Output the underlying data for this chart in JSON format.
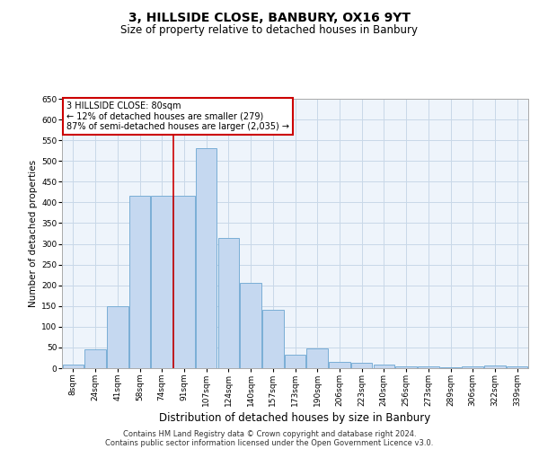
{
  "title1": "3, HILLSIDE CLOSE, BANBURY, OX16 9YT",
  "title2": "Size of property relative to detached houses in Banbury",
  "xlabel": "Distribution of detached houses by size in Banbury",
  "ylabel": "Number of detached properties",
  "footer1": "Contains HM Land Registry data © Crown copyright and database right 2024.",
  "footer2": "Contains public sector information licensed under the Open Government Licence v3.0.",
  "annotation_title": "3 HILLSIDE CLOSE: 80sqm",
  "annotation_line1": "← 12% of detached houses are smaller (279)",
  "annotation_line2": "87% of semi-detached houses are larger (2,035) →",
  "categories": [
    "8sqm",
    "24sqm",
    "41sqm",
    "58sqm",
    "74sqm",
    "91sqm",
    "107sqm",
    "124sqm",
    "140sqm",
    "157sqm",
    "173sqm",
    "190sqm",
    "206sqm",
    "223sqm",
    "240sqm",
    "256sqm",
    "273sqm",
    "289sqm",
    "306sqm",
    "322sqm",
    "339sqm"
  ],
  "values": [
    8,
    45,
    150,
    415,
    415,
    415,
    530,
    315,
    205,
    140,
    33,
    47,
    15,
    13,
    8,
    4,
    4,
    2,
    5,
    6,
    5
  ],
  "bar_color": "#c5d8f0",
  "bar_edge_color": "#7aaed6",
  "vline_index": 5.0,
  "vline_color": "#cc0000",
  "ylim": [
    0,
    650
  ],
  "yticks": [
    0,
    50,
    100,
    150,
    200,
    250,
    300,
    350,
    400,
    450,
    500,
    550,
    600,
    650
  ],
  "annotation_box_color": "white",
  "annotation_box_edge": "#cc0000",
  "grid_color": "#c8d8e8",
  "bg_color": "#eef4fb",
  "title1_fontsize": 10,
  "title2_fontsize": 8.5,
  "ylabel_fontsize": 7.5,
  "xlabel_fontsize": 8.5,
  "tick_fontsize": 6.5,
  "ann_fontsize": 7,
  "footer_fontsize": 6
}
